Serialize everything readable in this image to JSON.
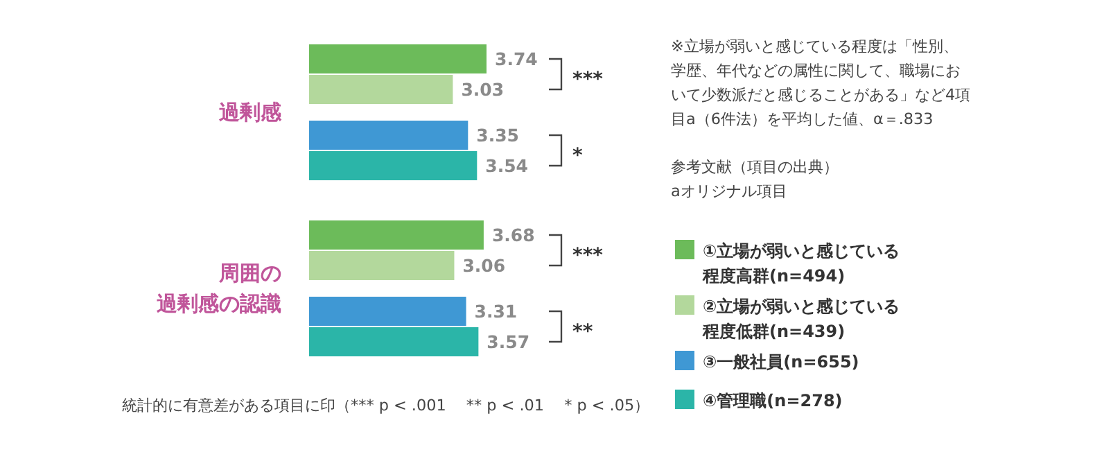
{
  "chart_data": {
    "type": "bar",
    "orientation": "horizontal",
    "data_labels": true,
    "legend": "right",
    "categories": [
      "過剰感",
      "周囲の過剰感の認識"
    ],
    "series": [
      {
        "name": "①立場が弱いと感じている程度高群(n=494)",
        "color": "#6cbb5a",
        "values": [
          3.74,
          3.68
        ]
      },
      {
        "name": "②立場が弱いと感じている程度低群(n=439)",
        "color": "#b3d89c",
        "values": [
          3.03,
          3.06
        ]
      },
      {
        "name": "③一般社員(n=655)",
        "color": "#3f98d4",
        "values": [
          3.35,
          3.31
        ]
      },
      {
        "name": "④管理職(n=278)",
        "color": "#2bb5a8",
        "values": [
          3.54,
          3.57
        ]
      }
    ],
    "annotations": [
      "***",
      "*",
      "***",
      "**",
      "※立場が弱いと感じている程度は「性別、学歴、年代などの属性に関して、職場において少数派だと感じることがある」など4項目a（6件法）を平均した値、α＝.833",
      "参考文献（項目の出典）aオリジナル項目",
      "統計的に有意差がある項目に印（*** p < .001　 ** p < .01　 * p < .05）"
    ]
  }
}
